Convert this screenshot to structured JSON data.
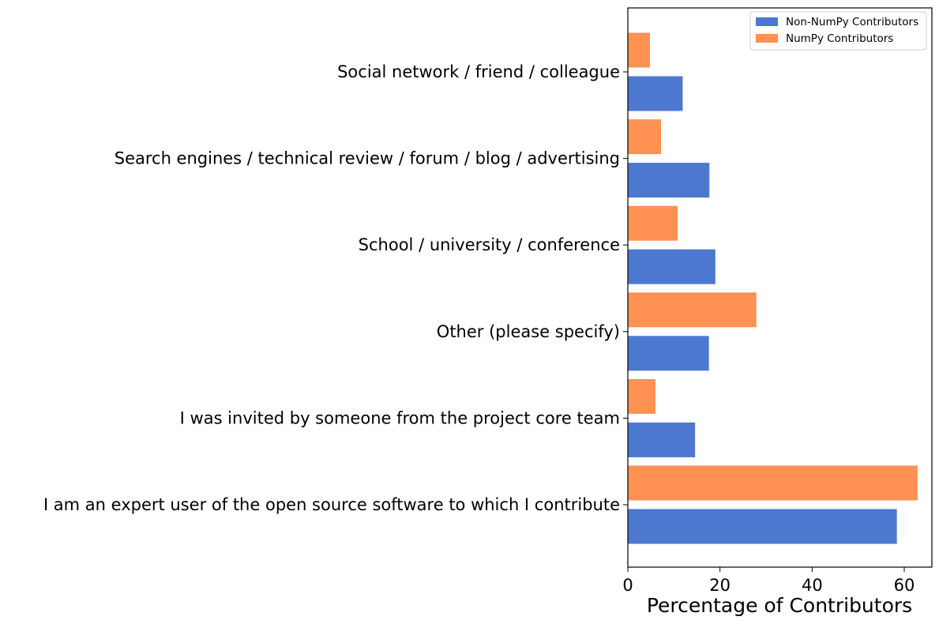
{
  "chart_data": {
    "type": "bar",
    "orientation": "horizontal",
    "xlabel": "Percentage of Contributors",
    "ylabel": "",
    "xlim": [
      0,
      66
    ],
    "xticks": [
      0,
      20,
      40,
      60
    ],
    "grid": false,
    "legend_position": "top-right",
    "categories": [
      "I am an expert user of the open source software to which I contribute",
      "I was invited by someone from the project core team",
      "Other (please specify)",
      "School / university / conference",
      "Search engines / technical review / forum / blog / advertising",
      "Social network / friend / colleague"
    ],
    "series": [
      {
        "name": "Non-NumPy Contributors",
        "color": "#4d78cf",
        "values": [
          58.4,
          14.6,
          17.6,
          19.0,
          17.7,
          11.9
        ]
      },
      {
        "name": "NumPy Contributors",
        "color": "#ff9153",
        "values": [
          62.9,
          6.0,
          27.9,
          10.8,
          7.2,
          4.8
        ]
      }
    ]
  }
}
